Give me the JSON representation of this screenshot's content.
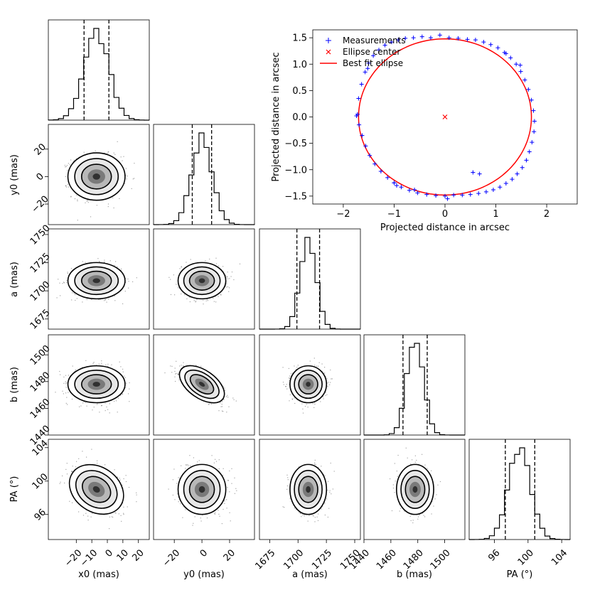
{
  "colors": {
    "measurements": "#0000ff",
    "center": "#ff0000",
    "fit": "#ff0000",
    "hist": "#000000",
    "density": "#000000"
  },
  "axis_labels": {
    "x0": "x0 (mas)",
    "y0": "y0 (mas)",
    "a": "a (mas)",
    "b": "b (mas)",
    "pa": "PA (°)"
  },
  "inset": {
    "xlabel": "Projected distance in arcsec",
    "ylabel": "Projected distance in arcsec",
    "legend": [
      "Measurements",
      "Ellipse center",
      "Best fit ellipse"
    ]
  },
  "chart_data": [
    {
      "type": "corner",
      "parameters": [
        {
          "key": "x0",
          "label": "x0 (mas)",
          "range": [
            -38,
            27
          ],
          "ticks": [
            -20,
            -10,
            0,
            10,
            20
          ],
          "tick_labels": [
            "−20",
            "−10",
            "0",
            "10",
            "20"
          ],
          "mean": -7,
          "std": 8,
          "quantiles": [
            -15,
            1
          ]
        },
        {
          "key": "y0",
          "label": "y0 (mas)",
          "range": [
            -35,
            38
          ],
          "ticks": [
            -20,
            0,
            20
          ],
          "tick_labels": [
            "−20",
            "0",
            "20"
          ],
          "mean": 0,
          "std": 7.5,
          "quantiles": [
            -7,
            7
          ]
        },
        {
          "key": "a",
          "label": "a (mas)",
          "range": [
            1666,
            1755
          ],
          "ticks": [
            1675,
            1700,
            1725,
            1750
          ],
          "tick_labels": [
            "1675",
            "1700",
            "1725",
            "1750"
          ],
          "mean": 1709,
          "std": 7,
          "quantiles": [
            1699,
            1719
          ]
        },
        {
          "key": "b",
          "label": "b (mas)",
          "range": [
            1440,
            1515
          ],
          "ticks": [
            1440,
            1460,
            1480,
            1500
          ],
          "tick_labels": [
            "1440",
            "1460",
            "1480",
            "1500"
          ],
          "mean": 1478,
          "std": 6,
          "quantiles": [
            1469,
            1487
          ]
        },
        {
          "key": "pa",
          "label": "PA (°)",
          "range": [
            93,
            105
          ],
          "ticks": [
            96,
            100,
            104
          ],
          "tick_labels": [
            "96",
            "100",
            "104"
          ],
          "mean": 99,
          "std": 1.3,
          "quantiles": [
            97.3,
            100.8
          ]
        }
      ],
      "correlations": {
        "y0-b": -0.7,
        "x0-pa": -0.3
      },
      "tick_label_order": {
        "x_axis": [
          "−20",
          "0",
          "20",
          "−20",
          "0",
          "20",
          "1675",
          "1700",
          "1725",
          "1750",
          "1440",
          "1460",
          "1480",
          "1500",
          "96",
          "100",
          "104"
        ],
        "y_axis": [
          "20",
          "0",
          "−20",
          "1750",
          "1725",
          "1700",
          "1675",
          "1500",
          "1480",
          "1460",
          "1440",
          "104",
          "100",
          "96"
        ]
      }
    },
    {
      "type": "scatter",
      "xlabel": "Projected distance in arcsec",
      "ylabel": "Projected distance in arcsec",
      "xlim": [
        -2.6,
        2.6
      ],
      "ylim": [
        -1.65,
        1.65
      ],
      "xticks": [
        -2,
        -1,
        0,
        1,
        2
      ],
      "xtick_labels": [
        "−2",
        "−1",
        "0",
        "1",
        "2"
      ],
      "yticks": [
        -1.5,
        -1.0,
        -0.5,
        0.0,
        0.5,
        1.0,
        1.5
      ],
      "ytick_labels": [
        "−1.5",
        "−1.0",
        "−0.5",
        "0.0",
        "0.5",
        "1.0",
        "1.5"
      ],
      "legend_position": "top-left",
      "series": [
        {
          "name": "Measurements",
          "marker": "+",
          "x": [
            -1.72,
            -1.7,
            -1.64,
            -1.57,
            -1.5,
            -1.41,
            -1.3,
            -1.18,
            -1.05,
            -0.92,
            -0.78,
            -0.62,
            -0.45,
            -0.28,
            -0.1,
            0.08,
            0.26,
            0.44,
            0.6,
            0.76,
            0.9,
            1.04,
            1.17,
            1.29,
            1.4,
            1.49,
            1.57,
            1.64,
            1.7,
            1.74,
            1.76,
            1.75,
            1.71,
            1.66,
            1.6,
            1.52,
            1.42,
            1.32,
            1.2,
            1.08,
            0.95,
            0.81,
            0.66,
            0.5,
            0.34,
            0.17,
            0.0,
            -0.18,
            -0.36,
            -0.54,
            -0.7,
            -0.86,
            -1.0,
            -1.13,
            -1.26,
            -1.38,
            -1.48,
            -1.56,
            -1.63,
            -1.69,
            -1.74,
            -0.95,
            -0.6,
            0.05,
            0.55,
            0.68,
            -1.0,
            1.2,
            -1.52,
            1.48
          ],
          "y": [
            0.05,
            0.35,
            0.62,
            0.85,
            1.02,
            1.16,
            1.27,
            1.36,
            1.42,
            1.46,
            1.49,
            1.5,
            1.52,
            1.5,
            1.55,
            1.5,
            1.49,
            1.47,
            1.46,
            1.42,
            1.37,
            1.31,
            1.22,
            1.12,
            1.0,
            0.86,
            0.7,
            0.52,
            0.32,
            0.12,
            -0.08,
            -0.28,
            -0.48,
            -0.66,
            -0.82,
            -0.96,
            -1.08,
            -1.18,
            -1.26,
            -1.33,
            -1.38,
            -1.42,
            -1.45,
            -1.47,
            -1.48,
            -1.48,
            -1.5,
            -1.49,
            -1.47,
            -1.44,
            -1.39,
            -1.33,
            -1.25,
            -1.15,
            -1.03,
            -0.89,
            -0.73,
            -0.55,
            -0.35,
            -0.15,
            0.02,
            -1.3,
            -1.38,
            -1.55,
            -1.05,
            -1.08,
            -1.25,
            1.2,
            0.92,
            0.98
          ]
        },
        {
          "name": "Ellipse center",
          "marker": "x",
          "x": [
            0.0
          ],
          "y": [
            0.0
          ]
        },
        {
          "name": "Best fit ellipse",
          "type": "line",
          "a": 1.7,
          "b": 1.48,
          "center": [
            0,
            0
          ]
        }
      ]
    }
  ]
}
